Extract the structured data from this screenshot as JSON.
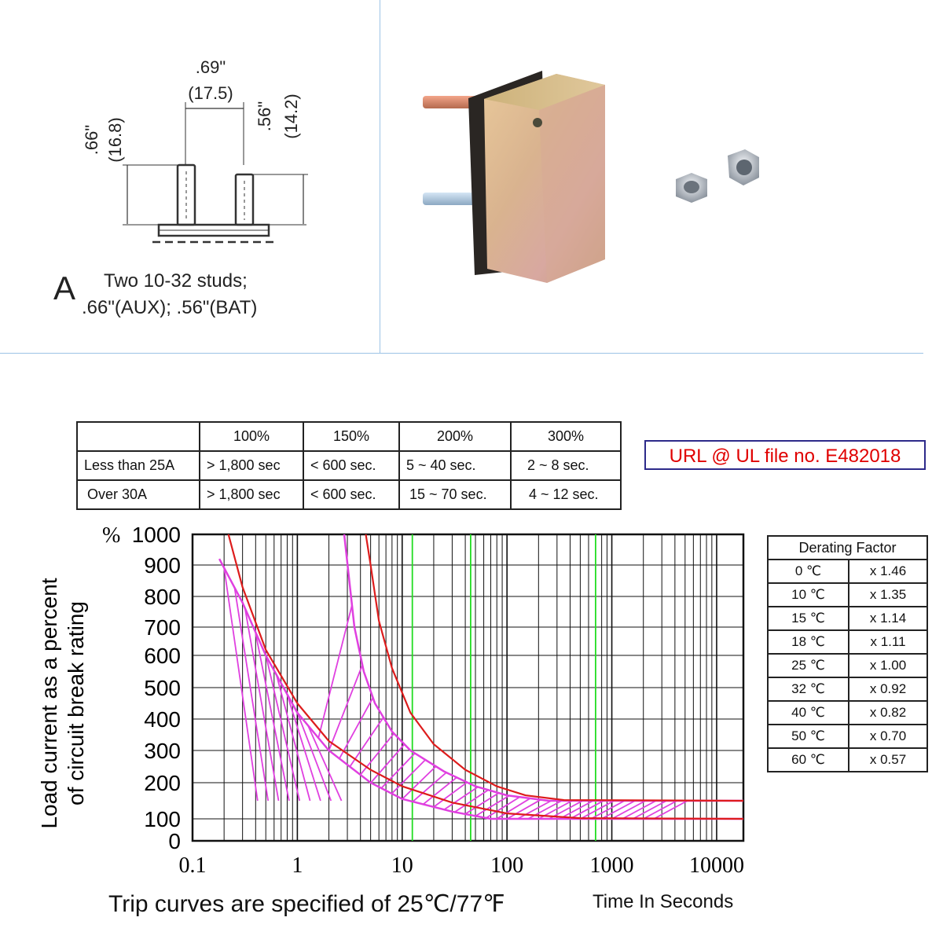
{
  "dimension_drawing": {
    "width_in": ".69\"",
    "width_mm": "(17.5)",
    "left_height_in": ".66\"",
    "left_height_mm": "(16.8)",
    "right_height_in": ".56\"",
    "right_height_mm": "(14.2)",
    "caption_letter": "A",
    "caption_line1": "Two 10-32 studs;",
    "caption_line2": ".66\"(AUX); .56\"(BAT)"
  },
  "trip_table": {
    "headers": [
      "",
      "100%",
      "150%",
      "200%",
      "300%"
    ],
    "rows": [
      [
        "Less than 25A",
        "> 1,800 sec",
        "< 600 sec.",
        "5 ~ 40 sec.",
        "2 ~ 8 sec."
      ],
      [
        "Over 30A",
        "> 1,800 sec",
        "< 600 sec.",
        "15 ~ 70 sec.",
        "4 ~ 12 sec."
      ]
    ]
  },
  "ul_note": "URL @ UL file no. E482018",
  "derating": {
    "title": "Derating Factor",
    "rows": [
      [
        "0 ℃",
        "x 1.46"
      ],
      [
        "10 ℃",
        "x 1.35"
      ],
      [
        "15 ℃",
        "x 1.14"
      ],
      [
        "18 ℃",
        "x 1.11"
      ],
      [
        "25 ℃",
        "x 1.00"
      ],
      [
        "32 ℃",
        "x 0.92"
      ],
      [
        "40 ℃",
        "x 0.82"
      ],
      [
        "50 ℃",
        "x 0.70"
      ],
      [
        "60 ℃",
        "x 0.57"
      ]
    ]
  },
  "footer": {
    "note": "Trip curves are specified of 25℃/77℉",
    "xlabel": "Time In Seconds"
  },
  "colors": {
    "band": "#e040e0",
    "curve": "#dd1c1c",
    "marker": "#22dd22",
    "grid": "#111111"
  },
  "chart_data": {
    "type": "line",
    "x_scale": "log",
    "xlim": [
      0.1,
      18000
    ],
    "ylim": [
      0,
      1000
    ],
    "ylabel_line1": "Load current as a percent",
    "ylabel_line2": "of circuit break rating",
    "y_unit_symbol": "%",
    "x_ticks": [
      {
        "value": 0.1,
        "label": "0.1"
      },
      {
        "value": 1,
        "label": "1"
      },
      {
        "value": 10,
        "label": "10"
      },
      {
        "value": 100,
        "label": "100"
      },
      {
        "value": 1000,
        "label": "1000"
      },
      {
        "value": 10000,
        "label": "10000"
      }
    ],
    "y_ticks": [
      {
        "value": 0,
        "label": "0"
      },
      {
        "value": 100,
        "label": "100"
      },
      {
        "value": 200,
        "label": "200"
      },
      {
        "value": 300,
        "label": "300"
      },
      {
        "value": 400,
        "label": "400"
      },
      {
        "value": 500,
        "label": "500"
      },
      {
        "value": 600,
        "label": "600"
      },
      {
        "value": 700,
        "label": "700"
      },
      {
        "value": 800,
        "label": "800"
      },
      {
        "value": 900,
        "label": "900"
      },
      {
        "value": 1000,
        "label": "1000"
      }
    ],
    "marker_lines_x": [
      12.5,
      45,
      700
    ],
    "grid": true,
    "series": [
      {
        "role": "band-inner",
        "points": [
          [
            0.18,
            920
          ],
          [
            0.3,
            780
          ],
          [
            0.5,
            600
          ],
          [
            1,
            420
          ],
          [
            2,
            300
          ],
          [
            5,
            200
          ],
          [
            10,
            155
          ],
          [
            30,
            120
          ],
          [
            70,
            100
          ],
          [
            18000,
            100
          ]
        ]
      },
      {
        "role": "band-outer",
        "points": [
          [
            2.8,
            1000
          ],
          [
            3.5,
            700
          ],
          [
            4.3,
            550
          ],
          [
            5.5,
            450
          ],
          [
            8,
            360
          ],
          [
            12,
            300
          ],
          [
            25,
            235
          ],
          [
            50,
            190
          ],
          [
            100,
            165
          ],
          [
            250,
            150
          ],
          [
            18000,
            150
          ]
        ]
      },
      {
        "role": "curve-a",
        "points": [
          [
            0.22,
            1000
          ],
          [
            0.3,
            830
          ],
          [
            0.5,
            620
          ],
          [
            1,
            450
          ],
          [
            2,
            330
          ],
          [
            5,
            240
          ],
          [
            10,
            190
          ],
          [
            30,
            145
          ],
          [
            100,
            115
          ],
          [
            500,
            102
          ],
          [
            18000,
            100
          ]
        ]
      },
      {
        "role": "curve-b",
        "points": [
          [
            4.5,
            1000
          ],
          [
            5,
            900
          ],
          [
            6,
            720
          ],
          [
            8,
            560
          ],
          [
            12,
            420
          ],
          [
            20,
            320
          ],
          [
            40,
            240
          ],
          [
            80,
            190
          ],
          [
            150,
            165
          ],
          [
            350,
            152
          ],
          [
            18000,
            150
          ]
        ]
      }
    ]
  }
}
